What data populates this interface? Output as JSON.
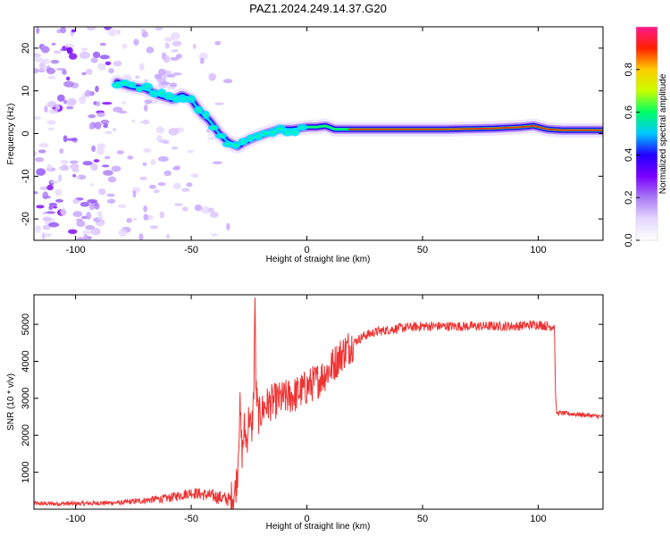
{
  "title": "PAZ1.2024.249.14.37.G20",
  "colorbar": {
    "label": "Normalized spectral amplitude",
    "ticks": [
      0.0,
      0.2,
      0.4,
      0.6,
      0.8
    ],
    "tick_labels": [
      "0.0",
      "0.2",
      "0.4",
      "0.6",
      "0.8"
    ],
    "range": [
      0,
      1
    ],
    "colormap": [
      "#ffffff",
      "#e6d8ff",
      "#a97af5",
      "#7b00ff",
      "#2200ff",
      "#00c8ff",
      "#00ff66",
      "#c8ff00",
      "#ffcc00",
      "#ff2000",
      "#ff1a8c"
    ]
  },
  "chart_data": [
    {
      "type": "heatmap",
      "title": "",
      "xlabel": "Height of straight line (km)",
      "ylabel": "Frequency (Hz)",
      "xlim": [
        -118,
        128
      ],
      "ylim": [
        -25,
        25
      ],
      "xticks": [
        -100,
        -50,
        0,
        50,
        100
      ],
      "xtick_labels": [
        "-100",
        "-50",
        "0",
        "50",
        "100"
      ],
      "yticks": [
        -20,
        -10,
        0,
        10,
        20
      ],
      "ytick_labels": [
        "-20",
        "-10",
        "0",
        "10",
        "20"
      ],
      "ridge": {
        "x": [
          -82,
          -76,
          -70,
          -64,
          -58,
          -54,
          -50,
          -46,
          -42,
          -38,
          -34,
          -30,
          -27,
          -23,
          -18,
          -12,
          -6,
          0,
          4,
          8,
          12,
          20,
          40,
          60,
          80,
          92,
          98,
          104,
          110,
          118,
          128
        ],
        "y": [
          12,
          11,
          10.5,
          9,
          8,
          9,
          8,
          5,
          3,
          0,
          -2,
          -3,
          -2,
          -1,
          0,
          1,
          1,
          1.5,
          1.5,
          1.8,
          1,
          1,
          1,
          1,
          1.2,
          1.5,
          1.8,
          1,
          0.8,
          0.8,
          0.8
        ]
      }
    },
    {
      "type": "line",
      "title": "",
      "xlabel": "Height of straight line (km)",
      "ylabel": "SNR (10 * v/v)",
      "xlim": [
        -118,
        128
      ],
      "ylim": [
        0,
        5800
      ],
      "xticks": [
        -100,
        -50,
        0,
        50,
        100
      ],
      "xtick_labels": [
        "-100",
        "-50",
        "0",
        "50",
        "100"
      ],
      "yticks": [
        1000,
        2000,
        3000,
        4000,
        5000
      ],
      "ytick_labels": [
        "1000",
        "2000",
        "3000",
        "4000",
        "5000"
      ],
      "series": [
        {
          "color": "#ee3333",
          "x": [
            -118,
            -100,
            -80,
            -60,
            -50,
            -40,
            -33,
            -31,
            -30,
            -29,
            -28,
            -27,
            -26,
            -25,
            -24,
            -23,
            -22.5,
            -22,
            -21,
            -20,
            -18,
            -15,
            -10,
            -5,
            0,
            5,
            10,
            15,
            20,
            25,
            30,
            40,
            50,
            60,
            70,
            80,
            90,
            100,
            104,
            107,
            107.5,
            108,
            110,
            120,
            128
          ],
          "y": [
            150,
            150,
            180,
            300,
            450,
            350,
            250,
            500,
            1000,
            2800,
            1500,
            2200,
            1800,
            2600,
            2000,
            3000,
            5800,
            3200,
            2500,
            2600,
            2800,
            2900,
            3000,
            3100,
            3300,
            3500,
            3800,
            4200,
            4500,
            4700,
            4800,
            4900,
            4950,
            4950,
            4950,
            4950,
            4950,
            5000,
            4950,
            4950,
            3000,
            2600,
            2600,
            2550,
            2500
          ]
        }
      ]
    }
  ]
}
